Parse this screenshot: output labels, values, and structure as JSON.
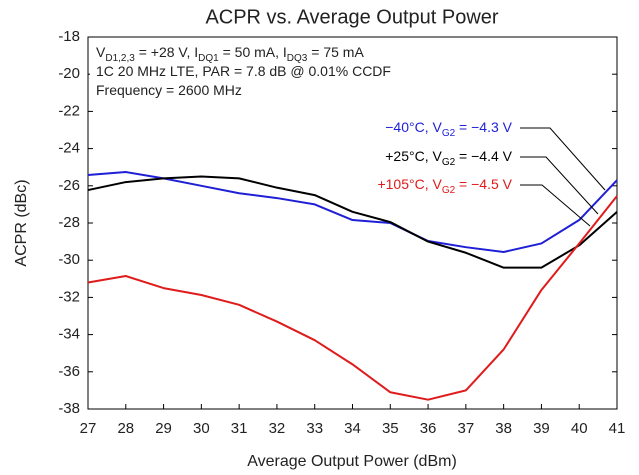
{
  "chart_data": {
    "type": "line",
    "title": "ACPR vs. Average Output Power",
    "x_label": "Average Output Power (dBm)",
    "y_label": "ACPR (dBc)",
    "notes": [
      [
        "V",
        "D1,2,3",
        " = +28 V, I",
        "DQ1",
        " = 50 mA, I",
        "DQ3",
        " = 75 mA"
      ],
      [
        "1C 20 MHz LTE, PAR = 7.8 dB @ 0.01% CCDF"
      ],
      [
        "Frequency = 2600 MHz"
      ]
    ],
    "x": [
      27,
      28,
      29,
      30,
      31,
      32,
      33,
      34,
      35,
      36,
      37,
      38,
      39,
      40,
      41
    ],
    "series": [
      {
        "name": [
          "−40°C, V",
          "G2",
          " = −4.3 V"
        ],
        "color": "#1f1fd6",
        "values": [
          -25.42,
          -25.26,
          -25.6,
          -26.0,
          -26.4,
          -26.66,
          -27.0,
          -27.84,
          -28.0,
          -28.97,
          -29.3,
          -29.56,
          -29.1,
          -27.84,
          -25.7
        ]
      },
      {
        "name": [
          "+25°C, V",
          "G2",
          " = −4.4 V"
        ],
        "color": "#000000",
        "values": [
          -26.23,
          -25.8,
          -25.6,
          -25.5,
          -25.6,
          -26.1,
          -26.5,
          -27.4,
          -27.95,
          -29.0,
          -29.6,
          -30.4,
          -30.4,
          -29.2,
          -27.4
        ]
      },
      {
        "name": [
          "+105°C, V",
          "G2",
          " = −4.5 V"
        ],
        "color": "#e01b1b",
        "values": [
          -31.2,
          -30.85,
          -31.5,
          -31.87,
          -32.4,
          -33.3,
          -34.3,
          -35.6,
          -37.1,
          -37.5,
          -37.0,
          -34.8,
          -31.6,
          -29.1,
          -26.55
        ]
      }
    ],
    "xlim": [
      27,
      41
    ],
    "ylim": [
      -38,
      -18
    ],
    "xticks": [
      27,
      28,
      29,
      30,
      31,
      32,
      33,
      34,
      35,
      36,
      37,
      38,
      39,
      40,
      41
    ],
    "yticks": [
      -18,
      -20,
      -22,
      -24,
      -26,
      -28,
      -30,
      -32,
      -34,
      -36,
      -38
    ]
  }
}
